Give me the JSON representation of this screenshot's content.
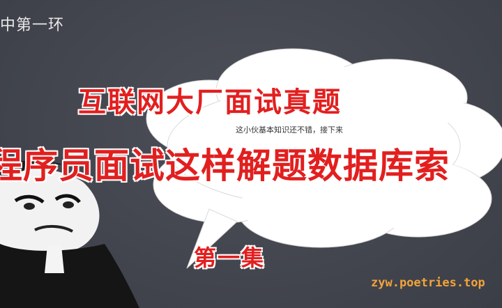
{
  "corner": {
    "text": "中第一环"
  },
  "bubble": {
    "caption": "这小伙基本知识还不错，接下来"
  },
  "headlines": {
    "line1": "互联网大厂面试真题",
    "line2": "程序员面试这样解题数据库索",
    "line3": "第一集"
  },
  "watermark": {
    "text": "zyw.poetries.top"
  },
  "colors": {
    "background": "#43464f",
    "headline_red": "#e21f1f",
    "watermark_orange": "#f2a33a",
    "bubble_white": "#ffffff"
  }
}
